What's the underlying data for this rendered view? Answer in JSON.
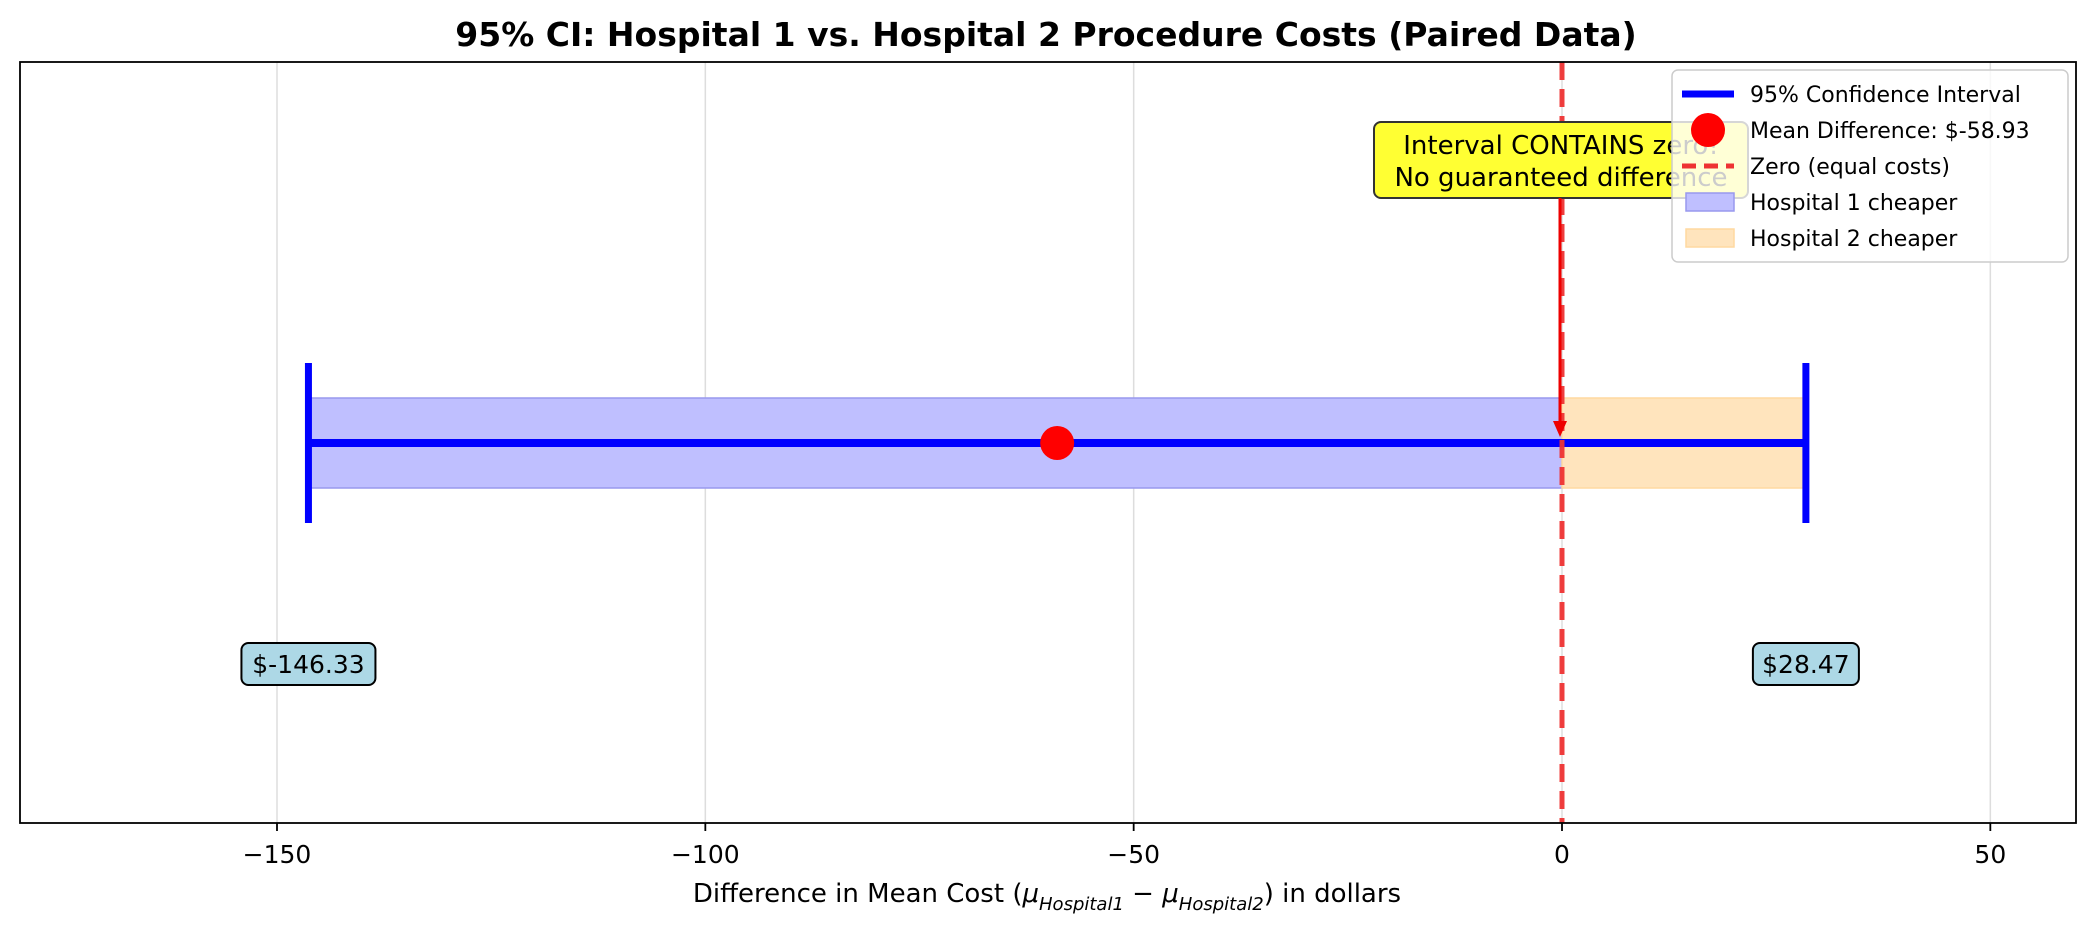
{
  "chart_data": {
    "type": "interval",
    "title": "95% CI: Hospital 1 vs. Hospital 2 Procedure Costs (Paired Data)",
    "xlabel": {
      "prefix": "Difference in Mean Cost (",
      "mu": "μ",
      "sub1": "Hospital1",
      "minus": " − ",
      "sub2": "Hospital2",
      "suffix": ") in dollars"
    },
    "xlim": [
      -180,
      60
    ],
    "xticks": [
      -150,
      -100,
      -50,
      0,
      50
    ],
    "xtick_labels": [
      "−150",
      "−100",
      "−50",
      "0",
      "50"
    ],
    "grid": "x",
    "ci_lower": -146.33,
    "ci_upper": 28.47,
    "mean_difference": -58.93,
    "zero_line": 0,
    "lower_label": "$-146.33",
    "upper_label": "$28.47",
    "annotation": [
      "Interval CONTAINS zero!",
      "No guaranteed difference"
    ],
    "legend_position": "top-right",
    "legend": [
      {
        "label": "95% Confidence Interval",
        "kind": "line",
        "color": "#0000ff"
      },
      {
        "label": "Mean Difference: $-58.93",
        "kind": "marker",
        "color": "#ff0000"
      },
      {
        "label": "Zero (equal costs)",
        "kind": "dashed",
        "color": "#ee3333"
      },
      {
        "label": "Hospital 1 cheaper",
        "kind": "patch",
        "color": "#bfbfff"
      },
      {
        "label": "Hospital 2 cheaper",
        "kind": "patch",
        "color": "#ffe4bd"
      }
    ],
    "colors": {
      "ci": "#0000ff",
      "mean": "#ff0000",
      "zero": "#ee3333",
      "h1_fill": "#bfbfff",
      "h2_fill": "#ffe4bd",
      "note_bg": "#ffff33",
      "end_label_bg": "#add8e6"
    }
  }
}
